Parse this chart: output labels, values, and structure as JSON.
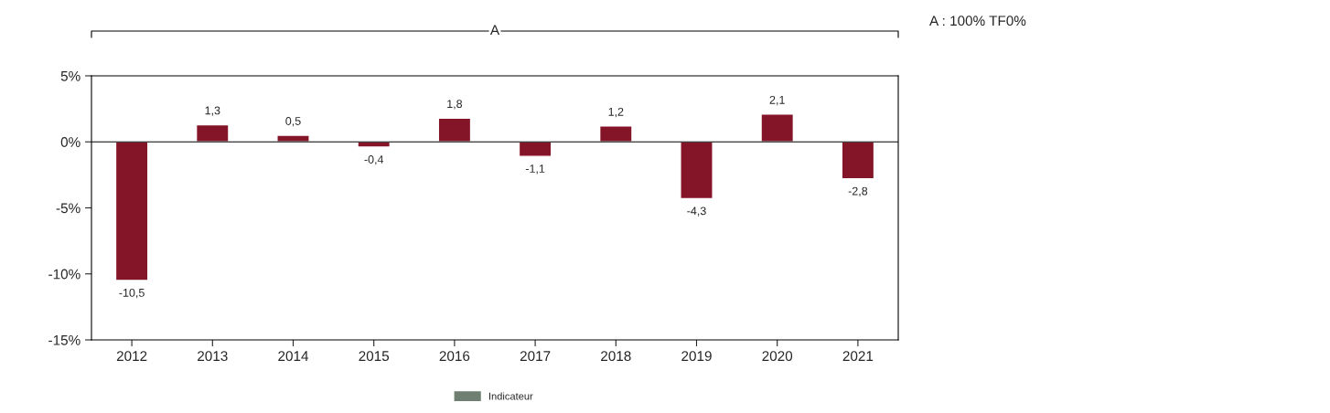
{
  "chart_data": {
    "type": "bar",
    "categories": [
      "2012",
      "2013",
      "2014",
      "2015",
      "2016",
      "2017",
      "2018",
      "2019",
      "2020",
      "2021"
    ],
    "series": [
      {
        "color": "#841428",
        "values": [
          -10.5,
          1.3,
          0.5,
          -0.4,
          1.8,
          -1.1,
          1.2,
          -4.3,
          2.1,
          -2.8
        ],
        "value_labels": [
          "-10,5",
          "1,3",
          "0,5",
          "-0,4",
          "1,8",
          "-1,1",
          "1,2",
          "-4,3",
          "2,1",
          "-2,8"
        ]
      },
      {
        "name": "Indicateur",
        "color": "#6f7f72",
        "values": [
          null,
          null,
          null,
          null,
          null,
          null,
          null,
          null,
          null,
          null
        ]
      }
    ],
    "ylim": [
      -15,
      5
    ],
    "yticks": [
      {
        "value": -15,
        "label": "-15%"
      },
      {
        "value": -10,
        "label": "-10%"
      },
      {
        "value": -5,
        "label": "-5%"
      },
      {
        "value": 0,
        "label": "0%"
      },
      {
        "value": 5,
        "label": "5%"
      }
    ],
    "ref_lines": [
      {
        "axis": "y",
        "value": 0,
        "color": "#000000"
      }
    ],
    "annotations": [
      "A",
      "A : 100% TF0%"
    ],
    "grid": false,
    "legend": "bottom"
  }
}
